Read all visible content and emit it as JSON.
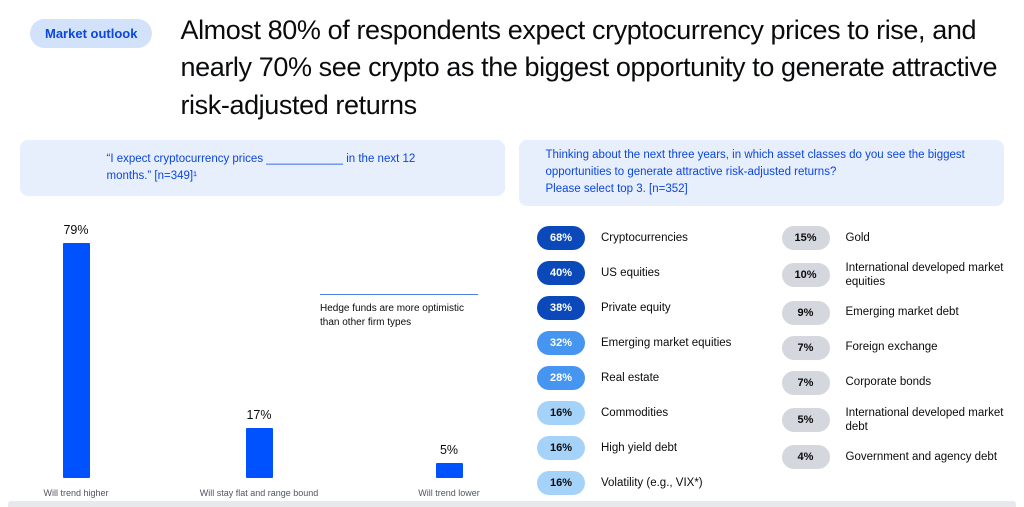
{
  "page": {
    "badge": "Market outlook",
    "headline": "Almost 80% of respondents expect cryptocurrency prices to rise, and nearly 70% see crypto as the biggest opportunity to generate attractive risk-adjusted returns"
  },
  "left_panel": {
    "question": "“I expect cryptocurrency prices ____________ in the next 12 months.” [n=349]¹",
    "annotation": "Hedge funds are more optimistic than other firm types",
    "bars": [
      {
        "pct": "79%",
        "label": "Will trend higher",
        "value": 79
      },
      {
        "pct": "17%",
        "label": "Will stay flat and range bound",
        "value": 17
      },
      {
        "pct": "5%",
        "label": "Will trend lower",
        "value": 5
      }
    ]
  },
  "right_panel": {
    "question_line1": "Thinking about the next three years, in which asset classes do you see the biggest opportunities to generate attractive risk-adjusted returns?",
    "question_line2": "Please select top 3. [n=352]",
    "col1": [
      {
        "pct": "68%",
        "label": "Cryptocurrencies",
        "tier": "dark"
      },
      {
        "pct": "40%",
        "label": "US equities",
        "tier": "dark"
      },
      {
        "pct": "38%",
        "label": "Private equity",
        "tier": "dark"
      },
      {
        "pct": "32%",
        "label": "Emerging market equities",
        "tier": "mid"
      },
      {
        "pct": "28%",
        "label": "Real estate",
        "tier": "mid"
      },
      {
        "pct": "16%",
        "label": "Commodities",
        "tier": "light"
      },
      {
        "pct": "16%",
        "label": "High yield debt",
        "tier": "light"
      },
      {
        "pct": "16%",
        "label": "Volatility (e.g., VIX*)",
        "tier": "light"
      }
    ],
    "col2": [
      {
        "pct": "15%",
        "label": "Gold",
        "tier": "gray"
      },
      {
        "pct": "10%",
        "label": "International developed market equities",
        "tier": "gray"
      },
      {
        "pct": "9%",
        "label": "Emerging market debt",
        "tier": "gray"
      },
      {
        "pct": "7%",
        "label": "Foreign exchange",
        "tier": "gray"
      },
      {
        "pct": "7%",
        "label": "Corporate bonds",
        "tier": "gray"
      },
      {
        "pct": "5%",
        "label": "International developed market debt",
        "tier": "gray"
      },
      {
        "pct": "4%",
        "label": "Government and agency debt",
        "tier": "gray"
      }
    ]
  },
  "colors": {
    "brand_blue": "#0052ff",
    "pill_dark": "#0b49bb",
    "pill_mid": "#4695f0",
    "pill_light": "#a5d2f8",
    "pill_gray": "#d4d8de",
    "banner_bg": "#e7eefc",
    "badge_bg": "#d3e2fb",
    "blue_text": "#0b46e0",
    "ink": "#0a0b0d"
  },
  "chart_data": [
    {
      "type": "bar",
      "title": "“I expect cryptocurrency prices ____________ in the next 12 months.” [n=349]¹",
      "categories": [
        "Will trend higher",
        "Will stay flat and range bound",
        "Will trend lower"
      ],
      "values": [
        79,
        17,
        5
      ],
      "unit": "%",
      "xlabel": "",
      "ylabel": "",
      "ylim": [
        0,
        100
      ],
      "grid": false,
      "legend": false,
      "annotations": [
        "Hedge funds are more optimistic than other firm types"
      ]
    },
    {
      "type": "bar",
      "title": "Thinking about the next three years, in which asset classes do you see the biggest opportunities to generate attractive risk-adjusted returns? Please select top 3. [n=352]",
      "categories": [
        "Cryptocurrencies",
        "US equities",
        "Private equity",
        "Emerging market equities",
        "Real estate",
        "Commodities",
        "High yield debt",
        "Volatility (e.g., VIX*)",
        "Gold",
        "International developed market equities",
        "Emerging market debt",
        "Foreign exchange",
        "Corporate bonds",
        "International developed market debt",
        "Government and agency debt"
      ],
      "values": [
        68,
        40,
        38,
        32,
        28,
        16,
        16,
        16,
        15,
        10,
        9,
        7,
        7,
        5,
        4
      ],
      "unit": "%",
      "grid": false,
      "legend": false
    }
  ]
}
